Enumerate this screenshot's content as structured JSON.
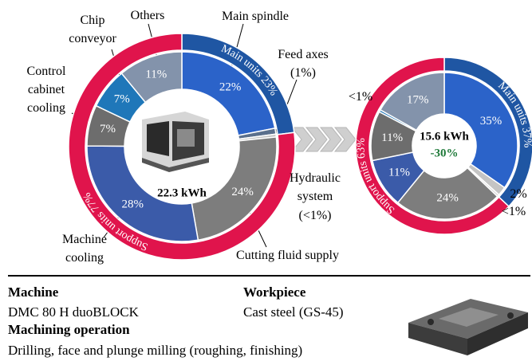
{
  "chart_data": [
    {
      "type": "pie",
      "center_label": "22.3 kWh",
      "rings": [
        {
          "categories": [
            "Main spindle",
            "Feed axes",
            "Hydraulic system",
            "Cutting fluid supply",
            "Machine cooling",
            "Control cabinet cooling",
            "Chip conveyor",
            "Others"
          ],
          "values": [
            22,
            1,
            0.5,
            24,
            28,
            7,
            7,
            11
          ],
          "value_labels": [
            "22%",
            "(1%)",
            "(<1%)",
            "24%",
            "28%",
            "7%",
            "7%",
            "11%"
          ],
          "colors": [
            "#2b63c9",
            "#5a6f8c",
            "#c4c4c4",
            "#7d7d7d",
            "#3b5ba9",
            "#6d6d6d",
            "#1f77b9",
            "#8393ab"
          ]
        },
        {
          "values": [
            23,
            77
          ],
          "value_labels": [
            "Main units 23%",
            "Support units 77%"
          ],
          "colors": [
            "#1f56a3",
            "#e0144c"
          ]
        }
      ]
    },
    {
      "type": "pie",
      "center_label": "15.6 kWh",
      "change_label": "-30%",
      "rings": [
        {
          "values": [
            35,
            2,
            0.5,
            24,
            11,
            11,
            0.5,
            17
          ],
          "value_labels": [
            "35%",
            "2%",
            "<1%",
            "24%",
            "11%",
            "11%",
            "<1%",
            "17%"
          ],
          "colors": [
            "#2b63c9",
            "#c4c4c4",
            "#dadada",
            "#7d7d7d",
            "#3b5ba9",
            "#6d6d6d",
            "#1f77b9",
            "#8393ab"
          ]
        },
        {
          "values": [
            37,
            63
          ],
          "value_labels": [
            "Main units 37%",
            "Support units 63%"
          ],
          "colors": [
            "#1f56a3",
            "#e0144c"
          ]
        }
      ]
    }
  ],
  "details": {
    "machine_heading": "Machine",
    "machine": "DMC 80 H duoBLOCK",
    "workpiece_heading": "Workpiece",
    "workpiece": "Cast steel (GS-45)",
    "operation_heading": "Machining operation",
    "operation": "Drilling, face and plunge milling (roughing, finishing)"
  }
}
